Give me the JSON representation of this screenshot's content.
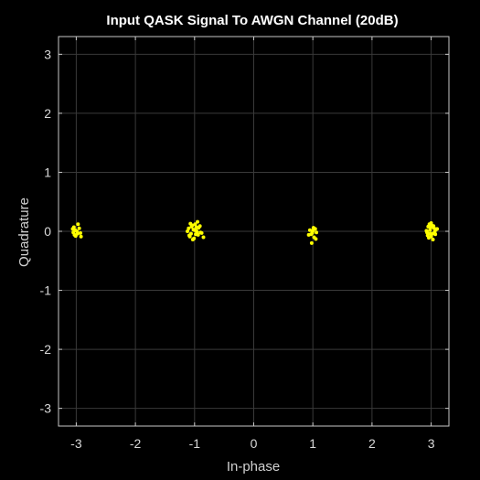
{
  "chart_data": {
    "type": "scatter",
    "title": "Input QASK Signal To AWGN Channel (20dB)",
    "xlabel": "In-phase",
    "ylabel": "Quadrature",
    "xlim": [
      -3.3,
      3.3
    ],
    "ylim": [
      -3.3,
      3.3
    ],
    "xticks": [
      -3,
      -2,
      -1,
      0,
      1,
      2,
      3
    ],
    "yticks": [
      -3,
      -2,
      -1,
      0,
      1,
      2,
      3
    ],
    "xtick_labels": [
      "-3",
      "-2",
      "-1",
      "0",
      "1",
      "2",
      "3"
    ],
    "ytick_labels": [
      "-3",
      "-2",
      "-1",
      "0",
      "1",
      "2",
      "3"
    ],
    "grid": true,
    "background": "#000000",
    "axes_color": "#c8c8c8",
    "grid_color": "#3a3a3a",
    "marker_color": "#ffff00",
    "series": [
      {
        "points": [
          [
            -3.02,
            0.02
          ],
          [
            -2.98,
            -0.04
          ],
          [
            -3.05,
            -0.02
          ],
          [
            -2.97,
            0.12
          ],
          [
            -3.01,
            -0.08
          ],
          [
            -2.93,
            -0.03
          ],
          [
            -3.06,
            0.04
          ],
          [
            -2.95,
            0.05
          ],
          [
            -3.03,
            -0.06
          ],
          [
            -2.99,
            0.0
          ],
          [
            -2.92,
            -0.09
          ],
          [
            -3.04,
            0.07
          ],
          [
            -1.02,
            0.03
          ],
          [
            -0.98,
            -0.05
          ],
          [
            -1.05,
            0.08
          ],
          [
            -0.95,
            0.16
          ],
          [
            -1.01,
            -0.12
          ],
          [
            -0.9,
            -0.02
          ],
          [
            -1.1,
            0.05
          ],
          [
            -0.97,
            0.01
          ],
          [
            -1.08,
            -0.09
          ],
          [
            -0.93,
            0.06
          ],
          [
            -1.03,
            -0.14
          ],
          [
            -0.85,
            -0.1
          ],
          [
            -1.12,
            0.0
          ],
          [
            -0.99,
            0.12
          ],
          [
            -0.94,
            -0.06
          ],
          [
            -1.06,
            -0.04
          ],
          [
            -0.91,
            0.09
          ],
          [
            -1.0,
            0.02
          ],
          [
            -0.96,
            -0.01
          ],
          [
            -1.04,
            0.1
          ],
          [
            -0.88,
            -0.03
          ],
          [
            -1.09,
            -0.07
          ],
          [
            -0.97,
            0.07
          ],
          [
            -1.07,
            0.13
          ],
          [
            1.0,
            0.01
          ],
          [
            0.97,
            -0.05
          ],
          [
            1.04,
            0.04
          ],
          [
            0.95,
            0.02
          ],
          [
            1.02,
            -0.1
          ],
          [
            0.98,
            -0.2
          ],
          [
            1.06,
            -0.02
          ],
          [
            0.93,
            -0.06
          ],
          [
            1.01,
            0.06
          ],
          [
            1.05,
            -0.13
          ],
          [
            0.99,
            -0.03
          ],
          [
            2.98,
            0.02
          ],
          [
            3.02,
            -0.04
          ],
          [
            2.95,
            0.08
          ],
          [
            3.05,
            0.05
          ],
          [
            3.0,
            -0.09
          ],
          [
            2.93,
            -0.02
          ],
          [
            3.08,
            0.03
          ],
          [
            2.97,
            0.12
          ],
          [
            3.03,
            -0.14
          ],
          [
            3.01,
            0.1
          ],
          [
            2.94,
            -0.07
          ],
          [
            3.06,
            -0.01
          ],
          [
            2.99,
            0.06
          ],
          [
            3.04,
            0.09
          ],
          [
            2.96,
            -0.11
          ],
          [
            3.1,
            0.04
          ],
          [
            2.92,
            0.01
          ],
          [
            3.0,
            0.14
          ],
          [
            3.07,
            -0.05
          ],
          [
            2.98,
            -0.04
          ]
        ]
      }
    ]
  }
}
